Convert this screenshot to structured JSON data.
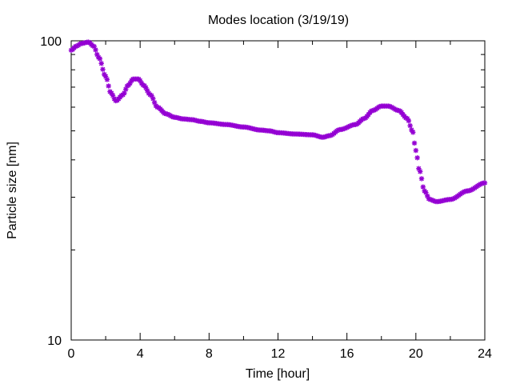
{
  "chart_data": {
    "type": "scatter",
    "title": "Modes location (3/19/19)",
    "xlabel": "Time [hour]",
    "ylabel": "Particle size [nm]",
    "xlim": [
      0,
      24
    ],
    "ylim": [
      10,
      100
    ],
    "yscale": "log",
    "xticks": [
      "0",
      "4",
      "8",
      "12",
      "16",
      "20",
      "24"
    ],
    "yticks": [
      "10",
      "100"
    ],
    "grid": false,
    "marker_color": "#9400d3",
    "marker": "star",
    "anchors": [
      [
        0.0,
        93
      ],
      [
        0.3,
        96
      ],
      [
        0.6,
        98
      ],
      [
        1.0,
        99
      ],
      [
        1.3,
        96
      ],
      [
        1.6,
        88
      ],
      [
        2.0,
        76
      ],
      [
        2.3,
        67
      ],
      [
        2.6,
        63
      ],
      [
        3.0,
        66
      ],
      [
        3.3,
        71
      ],
      [
        3.6,
        74.5
      ],
      [
        3.9,
        74.5
      ],
      [
        4.2,
        71
      ],
      [
        4.6,
        66
      ],
      [
        5.0,
        60
      ],
      [
        5.5,
        57
      ],
      [
        6.0,
        55.5
      ],
      [
        6.5,
        54.8
      ],
      [
        7.0,
        54.5
      ],
      [
        7.5,
        53.8
      ],
      [
        8.0,
        53.2
      ],
      [
        9.0,
        52.5
      ],
      [
        10.0,
        51.5
      ],
      [
        11.0,
        50.3
      ],
      [
        11.5,
        50.0
      ],
      [
        12.0,
        49.3
      ],
      [
        13.0,
        48.8
      ],
      [
        14.0,
        48.5
      ],
      [
        14.6,
        47.6
      ],
      [
        15.0,
        48.2
      ],
      [
        15.6,
        50.5
      ],
      [
        16.5,
        52.5
      ],
      [
        17.0,
        55.0
      ],
      [
        17.5,
        58.5
      ],
      [
        18.0,
        60.5
      ],
      [
        18.4,
        60.5
      ],
      [
        19.0,
        58.5
      ],
      [
        19.5,
        55.0
      ],
      [
        19.8,
        50.0
      ],
      [
        20.0,
        43.0
      ],
      [
        20.2,
        37.0
      ],
      [
        20.5,
        31.5
      ],
      [
        20.8,
        29.5
      ],
      [
        21.2,
        29.0
      ],
      [
        22.0,
        29.5
      ],
      [
        23.0,
        31.5
      ],
      [
        24.0,
        33.5
      ]
    ]
  }
}
